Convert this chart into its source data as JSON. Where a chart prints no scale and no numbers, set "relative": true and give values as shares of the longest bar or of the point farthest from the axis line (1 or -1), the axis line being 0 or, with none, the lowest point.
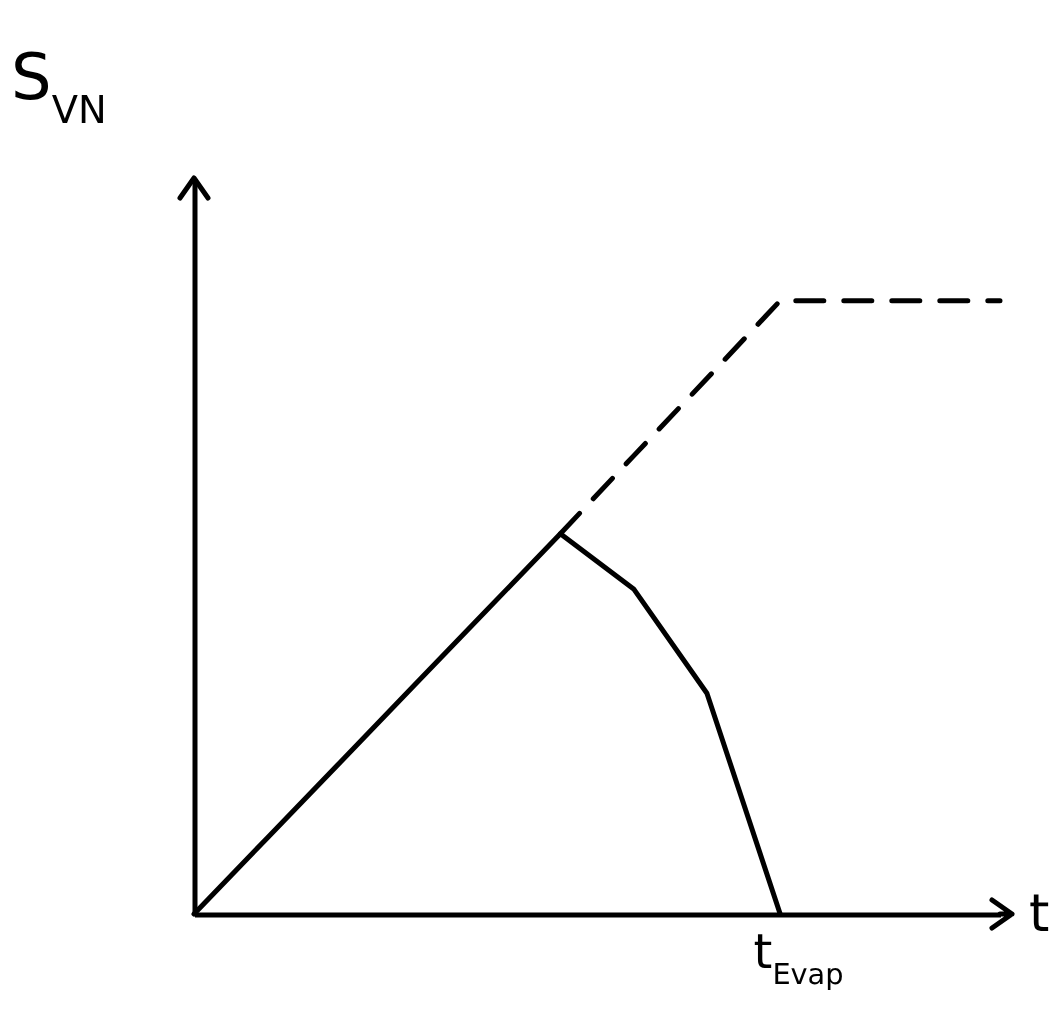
{
  "chart_data": {
    "type": "line",
    "relative": true,
    "xlabel": "t",
    "ylabel": "S$_{VN}$",
    "grid": false,
    "marker": "none",
    "tick_labels": false,
    "annotations": [
      "t$_{Evap}$"
    ],
    "categories": [
      null,
      null,
      null,
      null,
      null,
      null,
      null,
      null,
      null,
      null,
      null,
      null
    ],
    "series": [
      {
        "color": "#000000",
        "line_style": "solid",
        "values": [
          0,
          0.124,
          0.248,
          0.372,
          0.496,
          0.62,
          0.53,
          0.36,
          0,
          null,
          null,
          null
        ]
      },
      {
        "color": "#000000",
        "line_style": "dashed",
        "values": [
          null,
          null,
          null,
          null,
          null,
          0.62,
          0.747,
          0.873,
          1,
          1,
          1,
          1
        ]
      }
    ]
  }
}
